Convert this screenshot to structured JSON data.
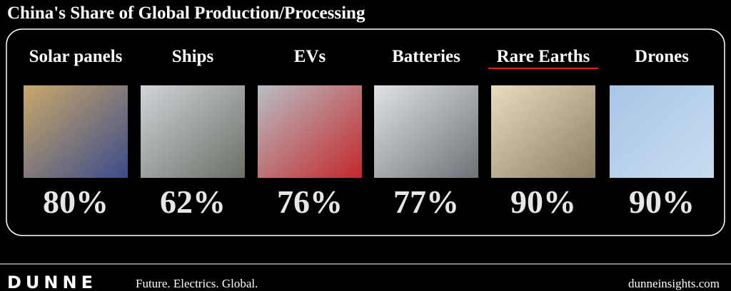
{
  "header": {
    "title": "China's Share of Global Production/Processing"
  },
  "items": [
    {
      "label": "Solar panels",
      "share": "80%"
    },
    {
      "label": "Ships",
      "share": "62%"
    },
    {
      "label": "EVs",
      "share": "76%"
    },
    {
      "label": "Batteries",
      "share": "77%"
    },
    {
      "label": "Rare Earths",
      "share": "90%"
    },
    {
      "label": "Drones",
      "share": "90%"
    }
  ],
  "footer": {
    "brand": "DUNNE",
    "tagline": "Future. Electrics. Global.",
    "url": "dunneinsights.com"
  }
}
